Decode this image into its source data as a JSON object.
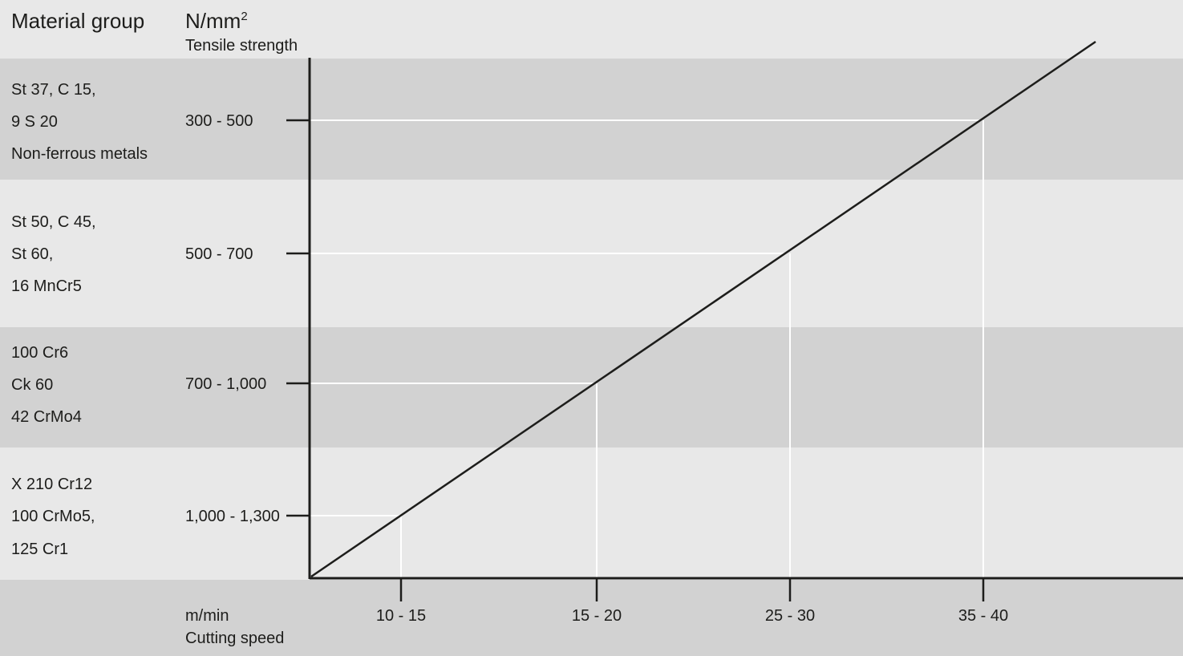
{
  "header": {
    "material_group": "Material group",
    "unit_main": "N/mm",
    "unit_sup": "2",
    "tensile_strength": "Tensile strength"
  },
  "footer": {
    "unit": "m/min",
    "cutting_speed": "Cutting speed"
  },
  "chart_data": {
    "type": "line",
    "xlabel": "m/min Cutting speed",
    "ylabel": "N/mm2 Tensile strength",
    "x_categories": [
      "10 - 15",
      "15 - 20",
      "25 - 30",
      "35 - 40"
    ],
    "y_categories": [
      "300 - 500",
      "500 - 700",
      "700 - 1,000",
      "1,000 - 1,300"
    ],
    "rows": [
      {
        "materials": [
          "St 37, C 15,",
          "9 S 20",
          "Non-ferrous metals"
        ],
        "tensile_strength": "300 - 500",
        "cutting_speed": "35 - 40"
      },
      {
        "materials": [
          "St 50, C 45,",
          "St 60,",
          "16 MnCr5"
        ],
        "tensile_strength": "500 - 700",
        "cutting_speed": "25 - 30"
      },
      {
        "materials": [
          "100 Cr6",
          "Ck 60",
          "42 CrMo4"
        ],
        "tensile_strength": "700 - 1,000",
        "cutting_speed": "15 - 20"
      },
      {
        "materials": [
          "X 210 Cr12",
          "100 CrMo5,",
          "125 Cr1"
        ],
        "tensile_strength": "1,000 - 1,300",
        "cutting_speed": "10 - 15"
      }
    ],
    "colors": {
      "band_dark": "#d2d2d2",
      "band_light": "#e8e8e8",
      "line": "#1d1d1b",
      "guide": "#ffffff"
    }
  }
}
